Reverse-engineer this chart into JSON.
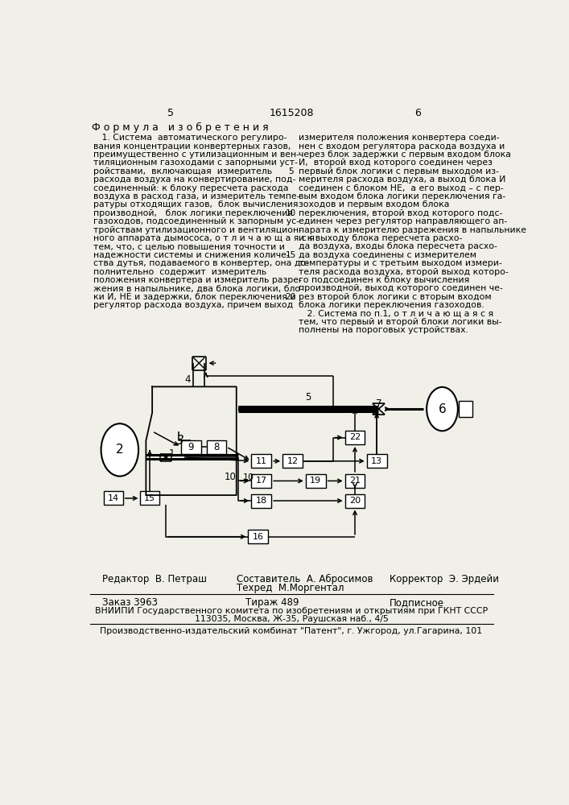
{
  "bg_color": "#f0efe8",
  "page_num_left": "5",
  "page_num_center": "1615208",
  "page_num_right": "6",
  "formula_title": "Ф о р м у л а   и з о б р е т е н и я",
  "left_col_lines": [
    "   1. Система  автоматического регулиро-",
    "вания концентрации конвертерных газов,",
    "преимущественно с утилизационным и вен-",
    "тиляционным газоходами с запорными уст-",
    "ройствами,  включающая  измеритель",
    "расхода воздуха на конвертирование, под-",
    "соединенный: к блоку пересчета расхода",
    "воздуха в расход газа, и измеритель темпе-",
    "ратуры отходящих газов,  блок вычисления",
    "производной,   блок логики переключения",
    "газоходов, подсоединенный к запорным ус-",
    "тройствам утилизационного и вентиляцион-",
    "ного аппарата дымососа, о т л и ч а ю щ а я с я",
    "тем, что, с целью повышения точности и",
    "надежности системы и снижения количе-",
    "ства дутья, подаваемого в конвертер, она до-",
    "полнительно  содержит  измеритель",
    "положения конвертера и измеритель разре-",
    "жения в напыльнике, два блока логики, бло-",
    "ки И, НЕ и задержки, блок переключения и",
    "регулятор расхода воздуха, причем выход"
  ],
  "right_col_lines": [
    "измерителя положения конвертера соеди-",
    "нен с входом регулятора расхода воздуха и",
    "через блок задержки с первым входом блока",
    "И,  второй вход которого соединен через",
    "первый блок логики с первым выходом из-",
    "мерителя расхода воздуха, а выход блока И",
    "соединен с блоком НЕ,  а его выход – с пер-",
    "вым входом блока логики переключения га-",
    "зоходов и первым входом блока",
    "переключения, второй вход которого подс-",
    "единен через регулятор направляющего ап-",
    "парата к измерителю разрежения в напыльнике",
    "и к выходу блока пересчета расхо-",
    "да воздуха, входы блока пересчета расхо-",
    "да воздуха соединены с измерителем",
    "температуры и с третьим выходом измери-",
    "теля расхода воздуха, второй выход которо-",
    "го подсоединен к блоку вычисления",
    "производной, выход которого соединен че-",
    "рез второй блок логики с вторым входом",
    "блока логики переключения газоходов.",
    "   2. Система по п.1, о т л и ч а ю щ а я с я",
    "тем, что первый и второй блоки логики вы-",
    "полнены на пороговых устройствах."
  ],
  "line_numbers": [
    5,
    10,
    15,
    20
  ],
  "footer_editor": "Редактор  В. Петраш",
  "footer_compiler": "Составитель  А. Абросимов",
  "footer_techred": "Техред  М.Моргентал",
  "footer_corrector": "Корректор  Э. Эрдейи",
  "footer_order": "Заказ 3963",
  "footer_tirazh": "Тираж 489",
  "footer_podp": "Подписное",
  "footer_vniiipi": "ВНИИПИ Государственного комитета по изобретениям и открытиям при ГКНТ СССР",
  "footer_address": "113035, Москва, Ж-35, Раушская наб., 4/5",
  "footer_patent": "Производственно-издательский комбинат \"Патент\", г. Ужгород, ул.Гагарина, 101"
}
